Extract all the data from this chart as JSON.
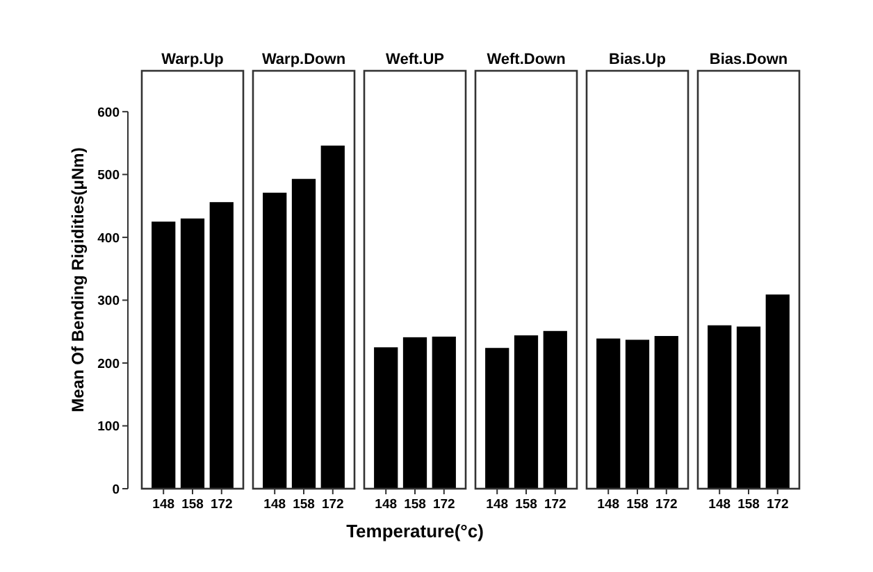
{
  "chart_data": [
    {
      "type": "bar",
      "title": "Warp.Up",
      "ylabel": "Mean Of Bending Rigidities(μNm)",
      "categories": [
        "148",
        "158",
        "172"
      ],
      "values": [
        425,
        430,
        456
      ],
      "color": "#000000",
      "ylim": [
        0,
        665
      ],
      "yticks": [
        0,
        100,
        200,
        300,
        400,
        500,
        600
      ],
      "grid": false
    },
    {
      "type": "bar",
      "title": "Warp.Down",
      "categories": [
        "148",
        "158",
        "172"
      ],
      "values": [
        471,
        493,
        546
      ],
      "color": "#000000",
      "ylim": [
        0,
        665
      ],
      "tick_labels": "x",
      "grid": false
    },
    {
      "type": "bar",
      "title": "Weft.UP",
      "xlabel": "Temperature(°c)",
      "categories": [
        "148",
        "158",
        "172"
      ],
      "values": [
        225,
        241,
        242
      ],
      "color": "#000000",
      "ylim": [
        0,
        665
      ],
      "tick_labels": "x",
      "grid": false
    },
    {
      "type": "bar",
      "title": "Weft.Down",
      "categories": [
        "148",
        "158",
        "172"
      ],
      "values": [
        224,
        244,
        251
      ],
      "color": "#000000",
      "ylim": [
        0,
        665
      ],
      "tick_labels": "x",
      "grid": false
    },
    {
      "type": "bar",
      "title": "Bias.Up",
      "categories": [
        "148",
        "158",
        "172"
      ],
      "values": [
        239,
        237,
        243
      ],
      "color": "#000000",
      "ylim": [
        0,
        665
      ],
      "tick_labels": "x",
      "grid": false
    },
    {
      "type": "bar",
      "title": "Bias.Down",
      "categories": [
        "148",
        "158",
        "172"
      ],
      "values": [
        260,
        258,
        309
      ],
      "color": "#000000",
      "ylim": [
        0,
        665
      ],
      "tick_labels": "x",
      "grid": false
    }
  ]
}
